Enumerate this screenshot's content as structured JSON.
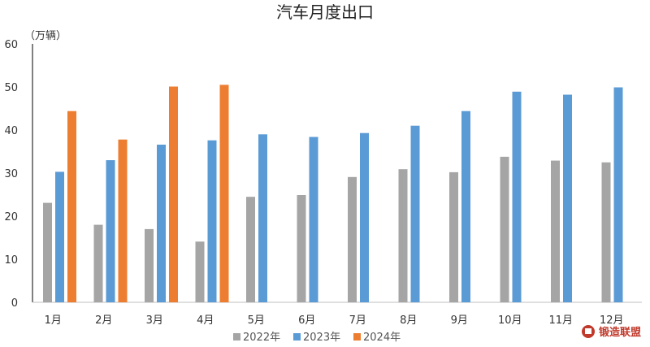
{
  "chart_data": {
    "type": "bar",
    "title": "汽车月度出口",
    "unit_label": "（万辆）",
    "categories": [
      "1月",
      "2月",
      "3月",
      "4月",
      "5月",
      "6月",
      "7月",
      "8月",
      "9月",
      "10月",
      "11月",
      "12月"
    ],
    "series": [
      {
        "name": "2022年",
        "color": "#a5a5a5",
        "values": [
          23.1,
          18.0,
          17.0,
          14.1,
          24.5,
          24.9,
          29.1,
          30.9,
          30.2,
          33.8,
          32.9,
          32.5
        ]
      },
      {
        "name": "2023年",
        "color": "#5b9bd5",
        "values": [
          30.3,
          33.0,
          36.6,
          37.6,
          39.0,
          38.4,
          39.3,
          41.0,
          44.4,
          48.9,
          48.2,
          49.9
        ]
      },
      {
        "name": "2024年",
        "color": "#ed7d31",
        "values": [
          44.4,
          37.8,
          50.1,
          50.5,
          null,
          null,
          null,
          null,
          null,
          null,
          null,
          null
        ]
      }
    ],
    "ylim": [
      0,
      60
    ],
    "yticks": [
      0,
      10,
      20,
      30,
      40,
      50,
      60
    ],
    "grid": false,
    "legend_position": "bottom"
  },
  "watermark": {
    "text": "锻造联盟",
    "color": "#c0392b"
  }
}
